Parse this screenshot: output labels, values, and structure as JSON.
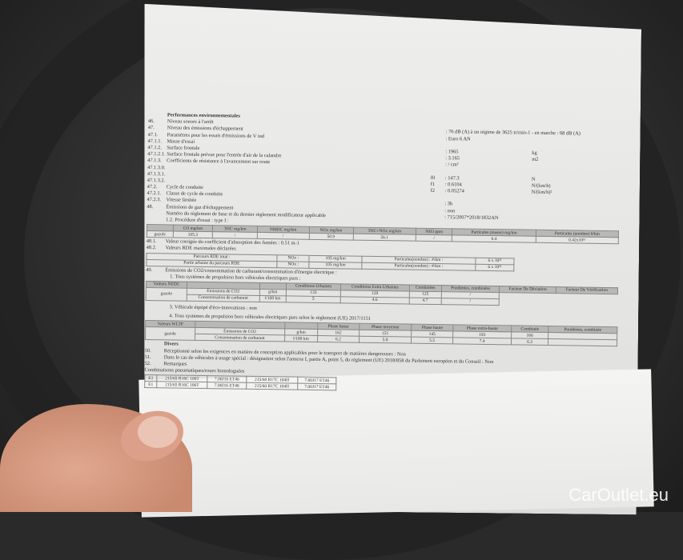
{
  "doc": {
    "heading": "Performances environnementales",
    "lines": [
      {
        "num": "46.",
        "label": "Niveau sonore à l'arrêt",
        "sym": "",
        "value": "",
        "unit": ""
      },
      {
        "num": "47.",
        "label": "Niveau des émissions d'échappement",
        "sym": "",
        "value": ": 76 dB (A)  à un régime de 3625 tr/min-1 - en marche : 68 dB (A)",
        "unit": ""
      },
      {
        "num": "47.1.",
        "label": "Paramètres pour les essais d'émissions de V ind",
        "sym": "",
        "value": ": Euro 6 AN",
        "unit": ""
      },
      {
        "num": "47.1.1.",
        "label": "Masse d'essai",
        "sym": "",
        "value": "",
        "unit": ""
      },
      {
        "num": "47.1.2.",
        "label": "Surface frontale",
        "sym": "",
        "value": ": 1965",
        "unit": "kg"
      },
      {
        "num": "47.1.2.1.",
        "label": "Surface frontale prévue pour l'entrée d'air de la calandre",
        "sym": "",
        "value": ": 3.165",
        "unit": "m2"
      },
      {
        "num": "47.1.3.",
        "label": "Coefficients de résistance à l'avancement sur route",
        "sym": "",
        "value": ": / cm²",
        "unit": ""
      },
      {
        "num": "47.1.3.0.",
        "label": "",
        "sym": "",
        "value": "",
        "unit": ""
      },
      {
        "num": "47.1.3.1.",
        "label": "",
        "sym": "f0",
        "value": ": 147.3",
        "unit": "N"
      },
      {
        "num": "47.1.3.2.",
        "label": "",
        "sym": "f1",
        "value": ": 0.6104",
        "unit": "N/(km/h)"
      },
      {
        "num": "47.2.",
        "label": "Cycle de conduite",
        "sym": "f2",
        "value": ": 0.05274",
        "unit": "N/(km/h)²"
      },
      {
        "num": "47.2.1.",
        "label": "Classe de cycle de conduite",
        "sym": "",
        "value": "",
        "unit": ""
      },
      {
        "num": "47.2.3.",
        "label": "Vitesse limitée",
        "sym": "",
        "value": ": 3b",
        "unit": ""
      },
      {
        "num": "48.",
        "label": "Émissions de gaz d'échappement",
        "sym": "",
        "value": ": non",
        "unit": ""
      },
      {
        "num": "",
        "label": "Numéro du règlement de base et du dernier règlement modificateur applicable",
        "sym": "",
        "value": ": 715/2007*2018/1832AN",
        "unit": ""
      },
      {
        "num": "",
        "label": "1.2. Procédure d'essai : type I :",
        "sym": "",
        "value": "",
        "unit": ""
      }
    ],
    "emissions_table": {
      "headers": [
        "",
        "CO mg/km",
        "THC mg/km",
        "NMHC mg/km",
        "NOx mg/km",
        "THC+NOx mg/km",
        "NH3 ppm",
        "Particules (masse) mg/km",
        "Particules (nombre) #/km"
      ],
      "row": [
        "gazole",
        "105.3",
        "/",
        "/",
        "50.9",
        "56.1",
        "/",
        "0.4",
        "0.42x10¹¹"
      ]
    },
    "l481": {
      "num": "48.1.",
      "label": "Valeur corrigée du coefficient d'absorption des fumées : 0.51 m-1"
    },
    "l482": {
      "num": "48.2.",
      "label": "Valeurs RDE maximales déclarées"
    },
    "rde": [
      [
        "Parcours RDE total :",
        "NOx :",
        "105 mg/km",
        "Particules(nombre) : #/km :",
        "6 x 10¹¹"
      ],
      [
        "Partie urbaine du parcours RDE",
        "NOx :",
        "105 mg/km",
        "Particules(nombre) : #/km :",
        "6 x 10¹¹"
      ]
    ],
    "l49": {
      "num": "49.",
      "label": "Émissions de CO2/consommation de carburant/consommation d'énergie électrique :"
    },
    "l49_1": "1. Tous systèmes de propulsion hors véhicules électriques purs :",
    "nedc": {
      "headers": [
        "Valeurs NEDC",
        "",
        "",
        "Conditions Urbaines",
        "Conditions Extra Urbaines",
        "Combinées",
        "Pondérées, combinées",
        "Facteur De Déviation",
        "Facteur De Vérification"
      ],
      "fuel": "gazole",
      "rows": [
        [
          "Émissions de CO2",
          "g/km",
          "133",
          "120",
          "125",
          "/"
        ],
        [
          "Consommation de carburant",
          "l/100 km",
          "5",
          "4.6",
          "4.7",
          "/"
        ]
      ]
    },
    "l49_3": "3. Véhicule équipé d'éco-innovations : non",
    "l49_4": "4. Tous systèmes de propulsion hors véhicules électriques purs selon le règlement (UE) 2017/1151",
    "wltp": {
      "headers": [
        "Valeurs WLTP",
        "",
        "",
        "Phase basse",
        "Phase moyenne",
        "Phase haute",
        "Phase extra-haute",
        "Combinée",
        "Pondérées, combinée"
      ],
      "fuel": "gazole",
      "rows": [
        [
          "Émissions de CO2",
          "g/km",
          "162",
          "151",
          "145",
          "193",
          "166",
          ""
        ],
        [
          "Consommation de carburant",
          "l/100 km",
          "6.2",
          "5.8",
          "5.5",
          "7.4",
          "6.3",
          ""
        ]
      ]
    },
    "divers": "Divers",
    "l50": {
      "num": "50.",
      "label": "Réceptionné selon les exigences en matière de conception applicables pour le transport de matières dangereuses : Non"
    },
    "l51": {
      "num": "51.",
      "label": "Dans le cas de véhicules à usage spécial : désignation selon l'annexe I, partie A, point 5, du règlement (UE) 2018/858 du Parlement européen et du Conseil : Non"
    },
    "l52": {
      "num": "52.",
      "label": "Remarques"
    },
    "tyres_heading": "Combinaisons pneumatiques/roues homologuées",
    "tyres": [
      [
        "E1",
        "215/65 R16C 106T",
        "7.00J16 ET46",
        "215/60 R17C 104H",
        "7.00J17 ET46"
      ],
      [
        "E1",
        "215/65 R16C 106T",
        "7.00J16 ET46",
        "215/60 R17C 104H",
        "7.00J17 ET46"
      ]
    ]
  },
  "watermark": "CarOutlet.eu"
}
